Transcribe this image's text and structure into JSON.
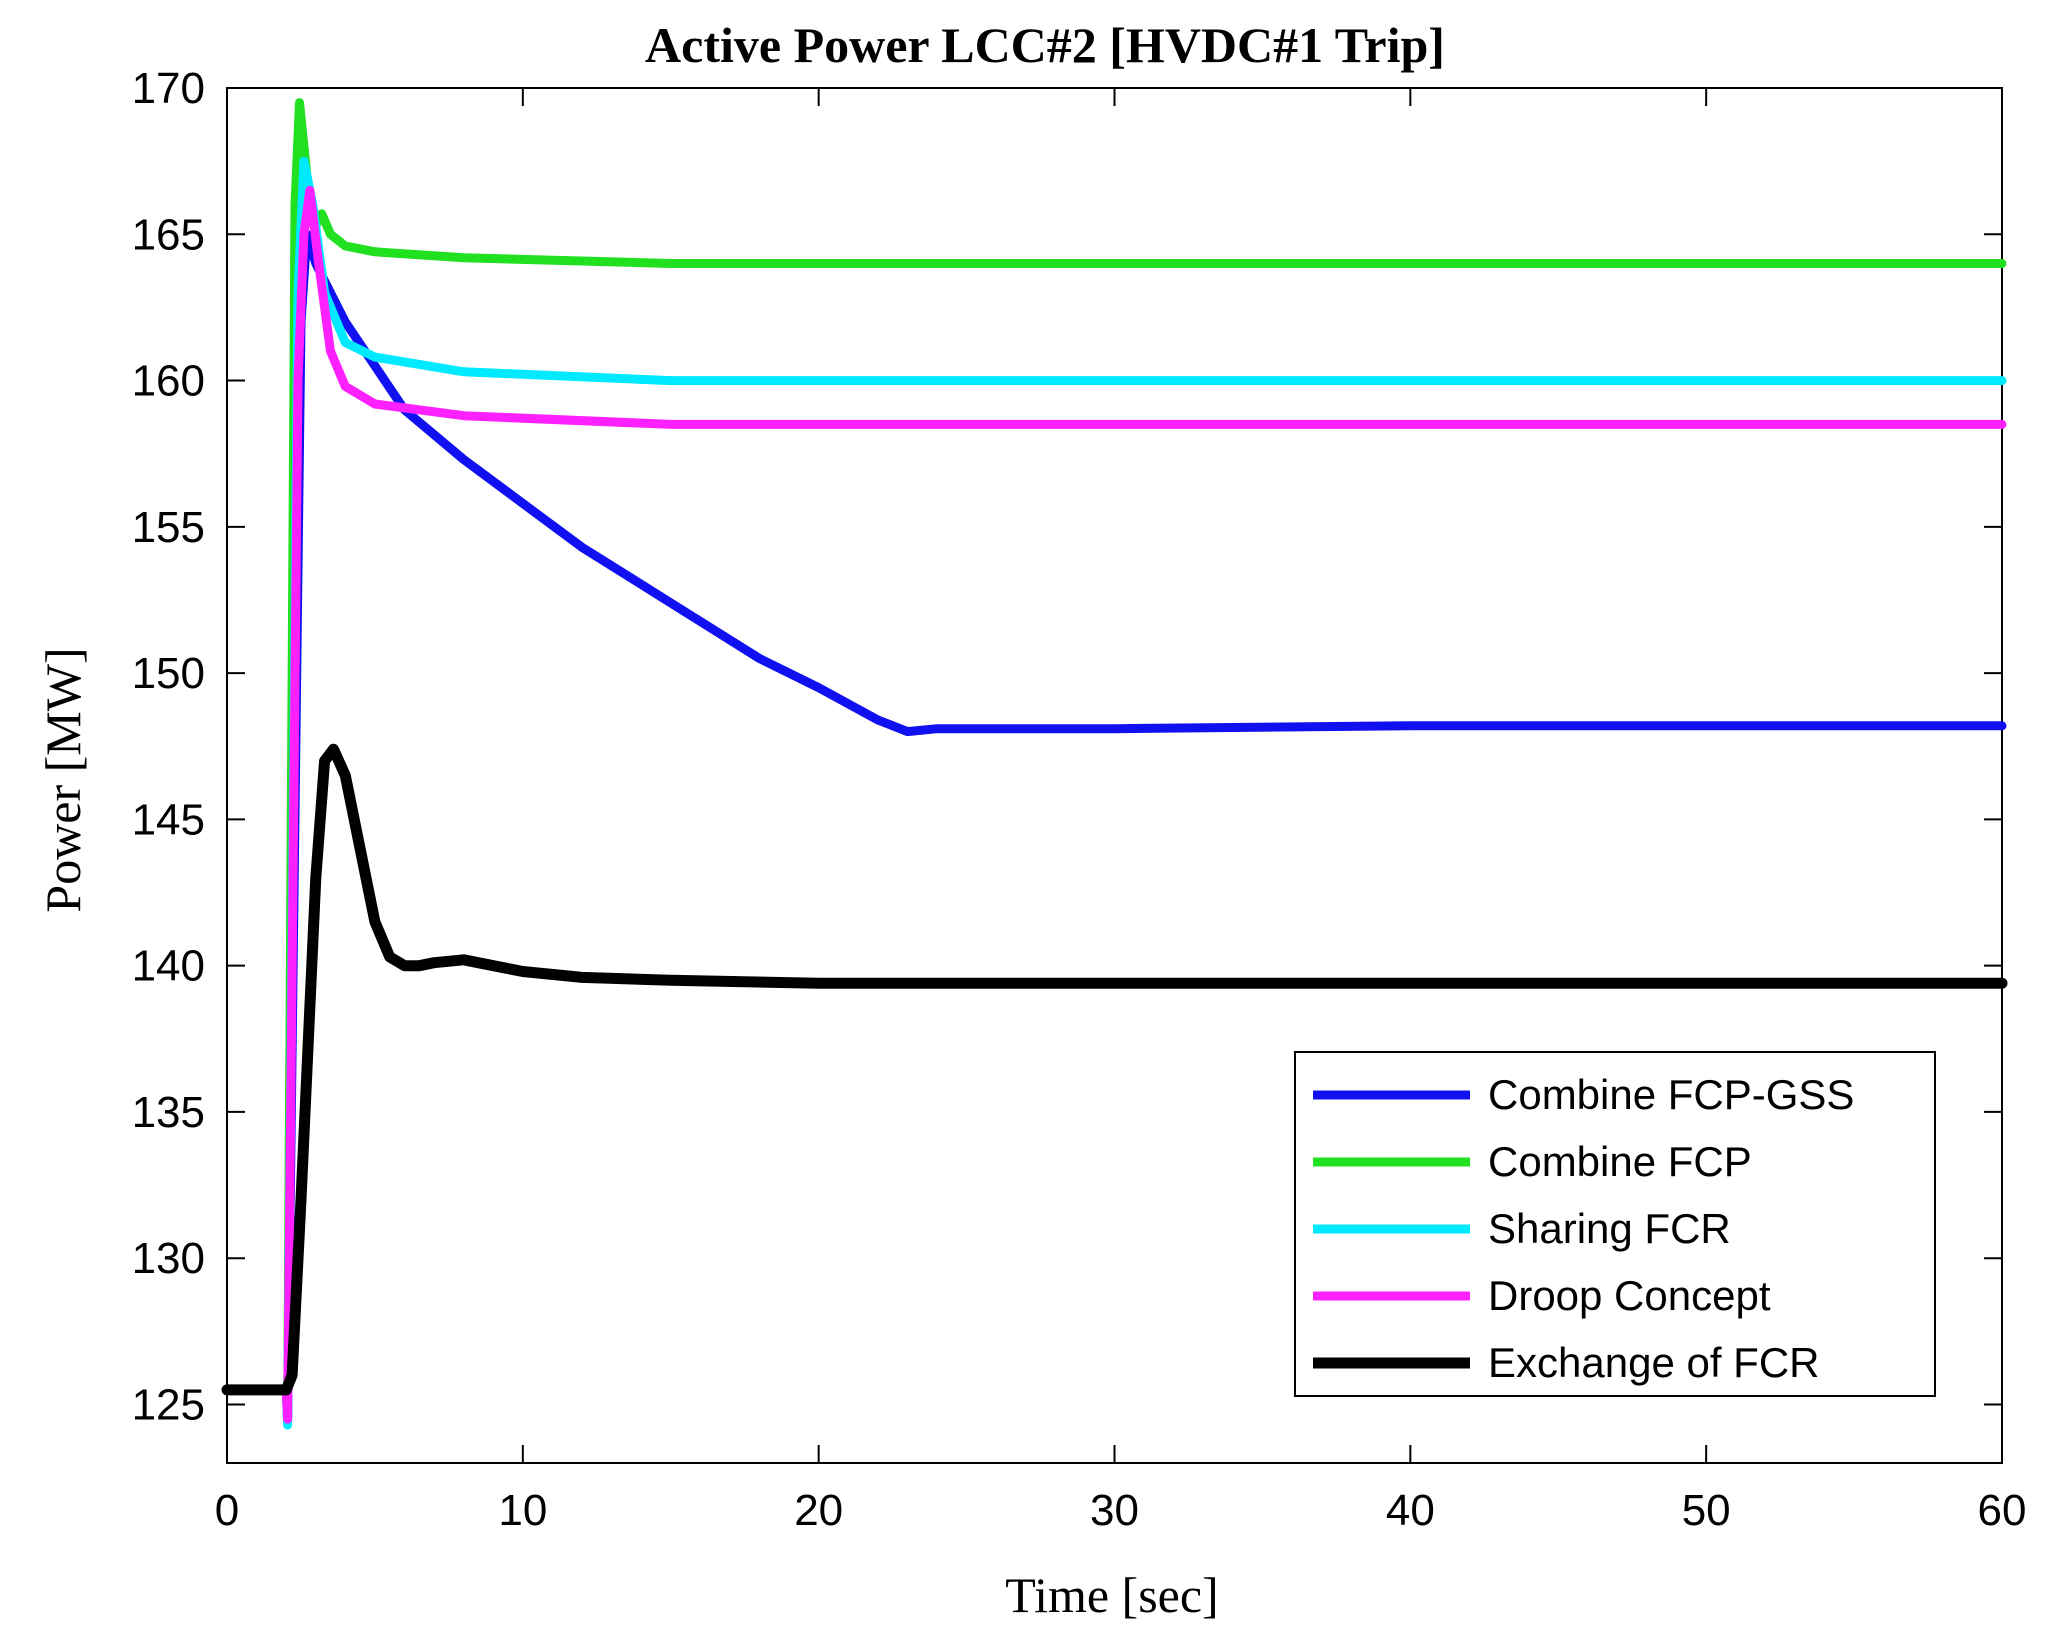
{
  "chart_data": {
    "type": "line",
    "title": "Active Power LCC#2 [HVDC#1 Trip]",
    "xlabel": "Time [sec]",
    "ylabel": "Power [MW]",
    "xlim": [
      0,
      60
    ],
    "ylim": [
      123,
      170
    ],
    "xticks": [
      0,
      10,
      20,
      30,
      40,
      50,
      60
    ],
    "yticks": [
      125,
      130,
      135,
      140,
      145,
      150,
      155,
      160,
      165,
      170
    ],
    "grid": false,
    "legend_position": "bottom-right",
    "series": [
      {
        "name": "Combine FCP-GSS",
        "color": "#1010f0",
        "x": [
          0,
          2,
          2.05,
          2.5,
          2.7,
          3,
          3.5,
          4,
          5,
          6,
          8,
          10,
          12,
          15,
          18,
          20,
          22,
          23,
          24,
          30,
          40,
          50,
          60
        ],
        "y": [
          125.5,
          125.5,
          124.5,
          162,
          165,
          164,
          163,
          162,
          160.5,
          159,
          157.3,
          155.8,
          154.3,
          152.4,
          150.5,
          149.5,
          148.4,
          148,
          148.1,
          148.1,
          148.2,
          148.2,
          148.2
        ]
      },
      {
        "name": "Combine FCP",
        "color": "#20e020",
        "x": [
          0,
          2,
          2.05,
          2.3,
          2.45,
          2.7,
          3,
          3.2,
          3.5,
          4,
          5,
          8,
          15,
          30,
          60
        ],
        "y": [
          125.5,
          125.5,
          124.5,
          166,
          169.5,
          167,
          165.3,
          165.7,
          165,
          164.6,
          164.4,
          164.2,
          164,
          164,
          164
        ]
      },
      {
        "name": "Sharing FCR",
        "color": "#00eaff",
        "x": [
          0,
          2,
          2.05,
          2.4,
          2.6,
          2.9,
          3.3,
          4,
          5,
          8,
          15,
          30,
          60
        ],
        "y": [
          125.5,
          125.5,
          124.3,
          163,
          167.5,
          166,
          163,
          161.3,
          160.8,
          160.3,
          160,
          160,
          160
        ],
        "notes": ""
      },
      {
        "name": "Droop Concept",
        "color": "#ff20ff",
        "x": [
          0,
          2,
          2.05,
          2.4,
          2.6,
          2.8,
          3.1,
          3.5,
          4,
          5,
          8,
          15,
          30,
          60
        ],
        "y": [
          125.5,
          125.5,
          124.5,
          160,
          165,
          166.5,
          164,
          161,
          159.8,
          159.2,
          158.8,
          158.5,
          158.5,
          158.5
        ]
      },
      {
        "name": "Exchange of FCR",
        "color": "#000000",
        "x": [
          0,
          2,
          2.2,
          2.5,
          3,
          3.3,
          3.6,
          4,
          4.5,
          5,
          5.5,
          6,
          6.5,
          7,
          8,
          9,
          10,
          12,
          15,
          20,
          30,
          60
        ],
        "y": [
          125.5,
          125.5,
          126,
          132,
          143,
          147,
          147.4,
          146.5,
          144,
          141.5,
          140.3,
          140,
          140,
          140.1,
          140.2,
          140,
          139.8,
          139.6,
          139.5,
          139.4,
          139.4,
          139.4
        ]
      }
    ]
  }
}
